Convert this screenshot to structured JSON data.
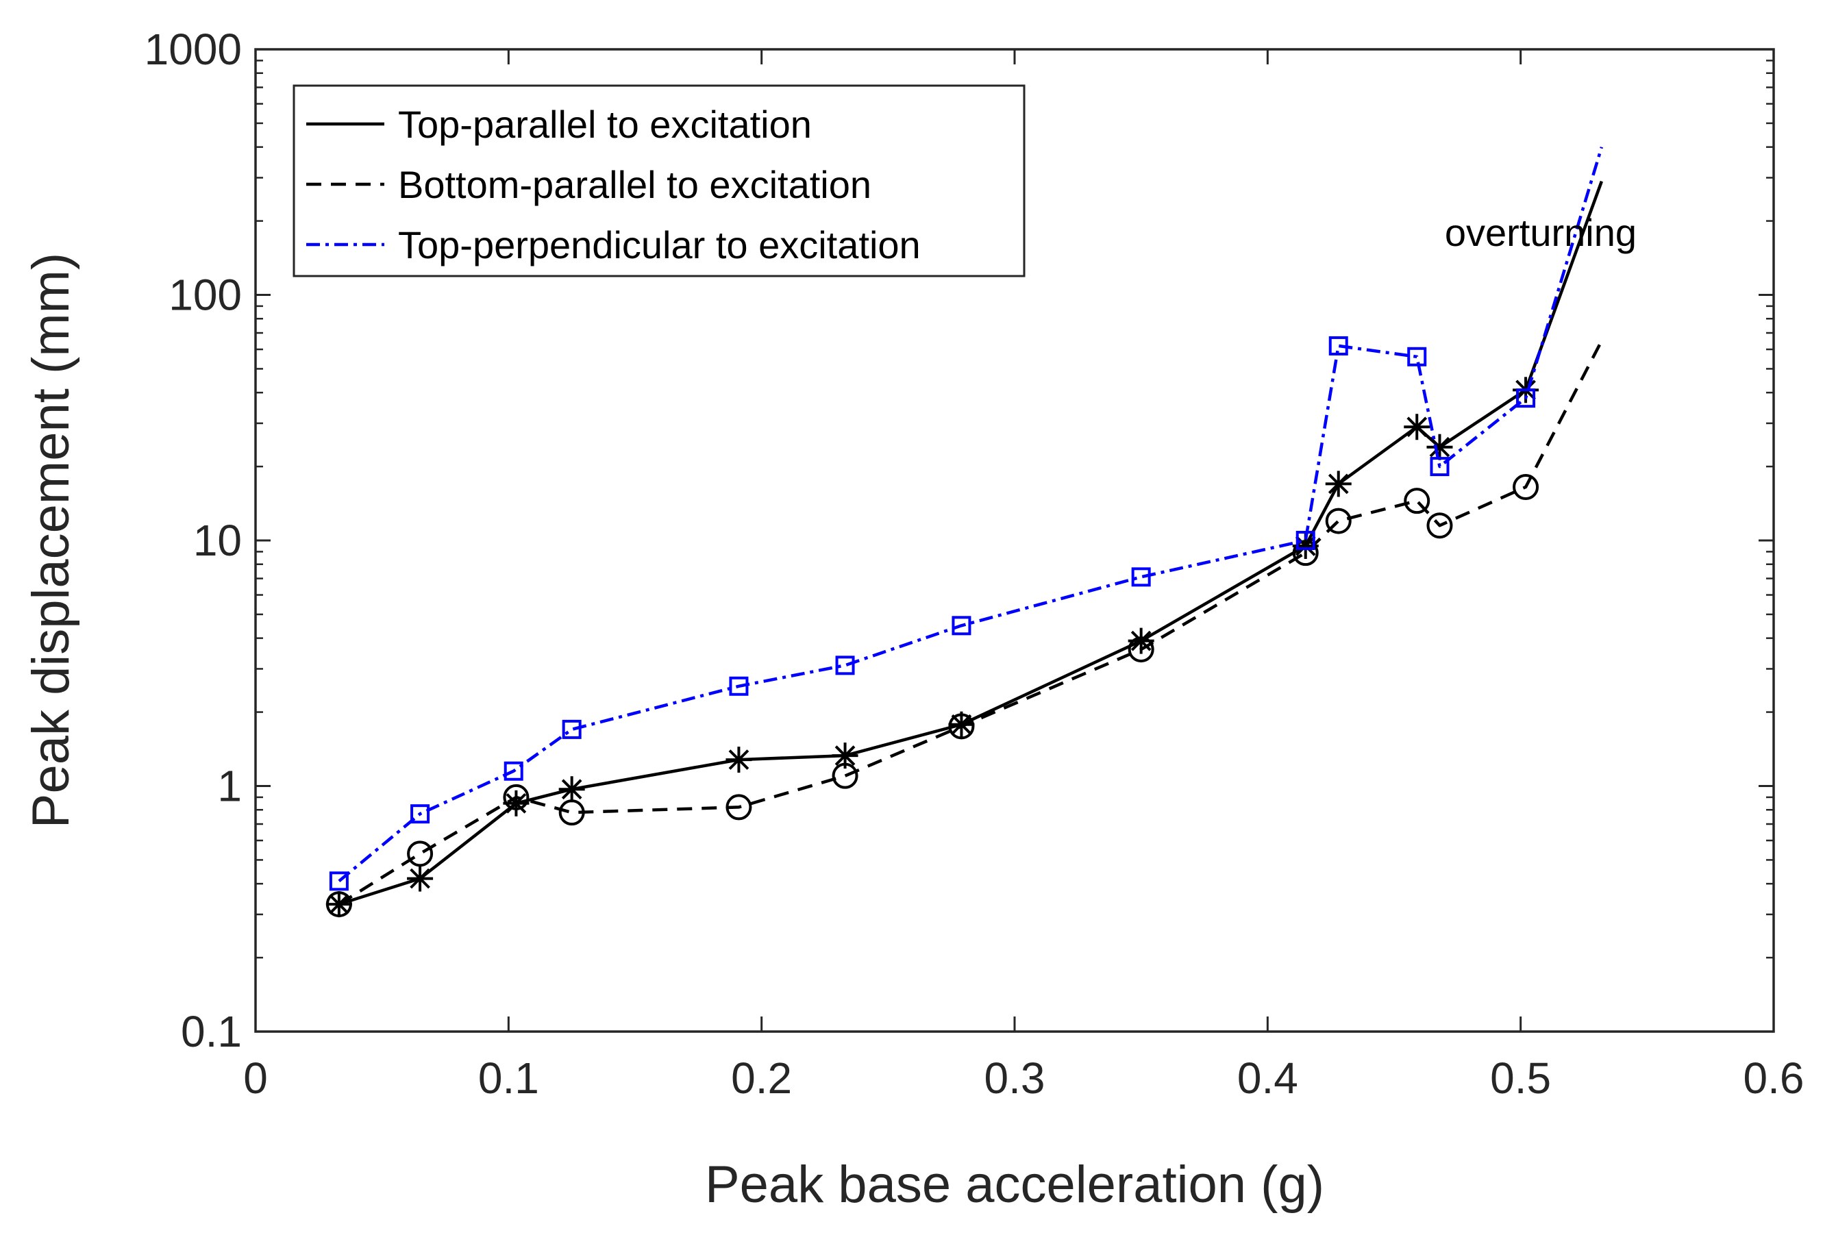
{
  "chart_data": {
    "type": "line",
    "title": "",
    "xlabel": "Peak base acceleration (g)",
    "ylabel": "Peak displacement (mm)",
    "xlim": [
      0,
      0.6
    ],
    "ylim": [
      0.1,
      1000
    ],
    "yscale": "log",
    "grid": false,
    "box": true,
    "legend_position": "top-left",
    "x_ticks": [
      0,
      0.1,
      0.2,
      0.3,
      0.4,
      0.5,
      0.6
    ],
    "x_tick_labels": [
      "0",
      "0.1",
      "0.2",
      "0.3",
      "0.4",
      "0.5",
      "0.6"
    ],
    "y_ticks": [
      0.1,
      1,
      10,
      100,
      1000
    ],
    "y_tick_labels": [
      "0.1",
      "1",
      "10",
      "100",
      "1000"
    ],
    "series": [
      {
        "name": "Top-parallel to excitation",
        "color": "#000000",
        "line_style": "solid",
        "marker": "asterisk",
        "x": [
          0.033,
          0.065,
          0.103,
          0.125,
          0.191,
          0.233,
          0.279,
          0.35,
          0.415,
          0.428,
          0.459,
          0.468,
          0.502
        ],
        "y": [
          0.33,
          0.42,
          0.85,
          0.97,
          1.28,
          1.33,
          1.78,
          3.9,
          9.5,
          17,
          29,
          24,
          41
        ],
        "extension": {
          "x": [
            0.502,
            0.532
          ],
          "y": [
            41,
            290
          ]
        }
      },
      {
        "name": "Bottom-parallel to excitation",
        "color": "#000000",
        "line_style": "dashed",
        "marker": "circle",
        "x": [
          0.033,
          0.065,
          0.103,
          0.125,
          0.191,
          0.233,
          0.279,
          0.35,
          0.415,
          0.428,
          0.459,
          0.468,
          0.502
        ],
        "y": [
          0.33,
          0.53,
          0.9,
          0.78,
          0.82,
          1.1,
          1.75,
          3.6,
          8.9,
          12,
          14.5,
          11.5,
          16.5
        ],
        "extension": {
          "x": [
            0.502,
            0.532
          ],
          "y": [
            16.5,
            65
          ]
        }
      },
      {
        "name": "Top-perpendicular to excitation",
        "color": "#0000ff",
        "line_style": "dashdot",
        "marker": "square",
        "x": [
          0.033,
          0.065,
          0.102,
          0.125,
          0.191,
          0.233,
          0.279,
          0.35,
          0.415,
          0.428,
          0.459,
          0.468,
          0.502
        ],
        "y": [
          0.41,
          0.77,
          1.15,
          1.7,
          2.55,
          3.1,
          4.5,
          7.1,
          10,
          62,
          56,
          20,
          38
        ],
        "extension": {
          "x": [
            0.502,
            0.532
          ],
          "y": [
            38,
            400
          ]
        }
      }
    ],
    "annotations": [
      {
        "text": "overturning",
        "x": 0.47,
        "y": 180
      }
    ]
  }
}
